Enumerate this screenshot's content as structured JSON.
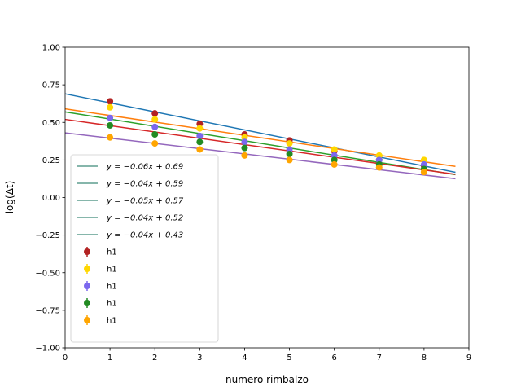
{
  "chart_data": {
    "type": "scatter",
    "xlabel": "numero rimbalzo",
    "ylabel": "log(Δt)",
    "xlim": [
      0,
      9
    ],
    "ylim": [
      -1.0,
      1.0
    ],
    "xticks": [
      "0",
      "1",
      "2",
      "3",
      "4",
      "5",
      "6",
      "7",
      "8",
      "9"
    ],
    "yticks": [
      "−1.00",
      "−0.75",
      "−0.50",
      "−0.25",
      "0.00",
      "0.25",
      "0.50",
      "0.75",
      "1.00"
    ],
    "grid": false,
    "legend_position": "lower-left",
    "fits": [
      {
        "label": "y = −0.06x + 0.69",
        "slope": -0.06,
        "intercept": 0.69,
        "color": "#1f77b4"
      },
      {
        "label": "y = −0.04x + 0.59",
        "slope": -0.044,
        "intercept": 0.59,
        "color": "#ff7f0e"
      },
      {
        "label": "y = −0.05x + 0.57",
        "slope": -0.048,
        "intercept": 0.57,
        "color": "#2ca02c"
      },
      {
        "label": "y = −0.04x + 0.52",
        "slope": -0.042,
        "intercept": 0.52,
        "color": "#d62728"
      },
      {
        "label": "y = −0.04x + 0.43",
        "slope": -0.035,
        "intercept": 0.43,
        "color": "#9467bd"
      }
    ],
    "fit_x_range": [
      0,
      8.7
    ],
    "legend_line_color": "#5f9e8f",
    "series": [
      {
        "name": "h1",
        "color": "#b22222",
        "x": [
          1,
          2,
          3,
          4,
          5,
          6,
          7,
          8
        ],
        "y": [
          0.64,
          0.56,
          0.49,
          0.42,
          0.38,
          0.31,
          0.25,
          0.21
        ]
      },
      {
        "name": "h1",
        "color": "#ffd700",
        "x": [
          1,
          2,
          3,
          4,
          5,
          6,
          7,
          8
        ],
        "y": [
          0.6,
          0.52,
          0.46,
          0.4,
          0.36,
          0.32,
          0.28,
          0.25
        ]
      },
      {
        "name": "h1",
        "color": "#7b68ee",
        "x": [
          1,
          2,
          3,
          4,
          5,
          6,
          7,
          8
        ],
        "y": [
          0.53,
          0.47,
          0.41,
          0.37,
          0.32,
          0.28,
          0.25,
          0.22
        ]
      },
      {
        "name": "h1",
        "color": "#228b22",
        "x": [
          1,
          2,
          3,
          4,
          5,
          6,
          7,
          8
        ],
        "y": [
          0.48,
          0.42,
          0.37,
          0.33,
          0.29,
          0.25,
          0.22,
          0.19
        ]
      },
      {
        "name": "h1",
        "color": "#ffa500",
        "x": [
          1,
          2,
          3,
          4,
          5,
          6,
          7,
          8
        ],
        "y": [
          0.4,
          0.36,
          0.32,
          0.28,
          0.25,
          0.22,
          0.2,
          0.17
        ]
      }
    ]
  }
}
